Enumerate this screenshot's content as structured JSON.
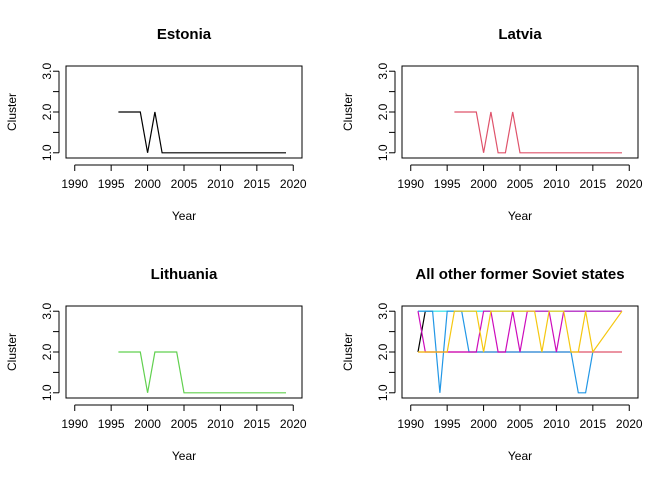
{
  "chart_data": [
    {
      "type": "line",
      "title": "Estonia",
      "xlabel": "Year",
      "ylabel": "Cluster",
      "xlim": [
        1990,
        2020
      ],
      "ylim": [
        1,
        3
      ],
      "xticks": [
        "1990",
        "1995",
        "2000",
        "2005",
        "2010",
        "2015",
        "2020"
      ],
      "yticks": [
        "1.0",
        "2.0",
        "3.0"
      ],
      "series": [
        {
          "color": "#000000",
          "x": [
            1996,
            1999,
            2000,
            2001,
            2002,
            2019
          ],
          "y": [
            2,
            2,
            1,
            2,
            1,
            1
          ]
        }
      ]
    },
    {
      "type": "line",
      "title": "Latvia",
      "xlabel": "Year",
      "ylabel": "Cluster",
      "xlim": [
        1990,
        2020
      ],
      "ylim": [
        1,
        3
      ],
      "xticks": [
        "1990",
        "1995",
        "2000",
        "2005",
        "2010",
        "2015",
        "2020"
      ],
      "yticks": [
        "1.0",
        "2.0",
        "3.0"
      ],
      "series": [
        {
          "color": "#DF536B",
          "x": [
            1996,
            1999,
            2000,
            2001,
            2002,
            2003,
            2004,
            2005,
            2019
          ],
          "y": [
            2,
            2,
            1,
            2,
            1,
            1,
            2,
            1,
            1
          ]
        }
      ]
    },
    {
      "type": "line",
      "title": "Lithuania",
      "xlabel": "Year",
      "ylabel": "Cluster",
      "xlim": [
        1990,
        2020
      ],
      "ylim": [
        1,
        3
      ],
      "xticks": [
        "1990",
        "1995",
        "2000",
        "2005",
        "2010",
        "2015",
        "2020"
      ],
      "yticks": [
        "1.0",
        "2.0",
        "3.0"
      ],
      "series": [
        {
          "color": "#61D04F",
          "x": [
            1996,
            1999,
            2000,
            2001,
            2004,
            2005,
            2019
          ],
          "y": [
            2,
            2,
            1,
            2,
            2,
            1,
            1
          ]
        }
      ]
    },
    {
      "type": "line",
      "title": "All other former Soviet states",
      "xlabel": "Year",
      "ylabel": "Cluster",
      "xlim": [
        1990,
        2020
      ],
      "ylim": [
        1,
        3
      ],
      "xticks": [
        "1990",
        "1995",
        "2000",
        "2005",
        "2010",
        "2015",
        "2020"
      ],
      "yticks": [
        "1.0",
        "2.0",
        "3.0"
      ],
      "series": [
        {
          "color": "#000000",
          "x": [
            1991,
            1992,
            1993
          ],
          "y": [
            2,
            3,
            3
          ]
        },
        {
          "color": "#DF536B",
          "x": [
            1991,
            2019
          ],
          "y": [
            2,
            2
          ]
        },
        {
          "color": "#28E2E5",
          "x": [
            1991,
            2019
          ],
          "y": [
            3,
            3
          ]
        },
        {
          "color": "#2297E6",
          "x": [
            1991,
            1993,
            1994,
            1995,
            1997,
            1998,
            2012,
            2013,
            2014,
            2015
          ],
          "y": [
            3,
            3,
            1,
            3,
            3,
            2,
            2,
            1,
            1,
            2
          ]
        },
        {
          "color": "#CD0BBC",
          "x": [
            1991,
            1992,
            1995,
            1996,
            1997,
            1998,
            1999,
            2000,
            2001,
            2002,
            2003,
            2004,
            2005,
            2006,
            2007,
            2008,
            2009,
            2010,
            2011,
            2019
          ],
          "y": [
            3,
            2,
            2,
            2,
            2,
            2,
            2,
            3,
            3,
            2,
            2,
            3,
            2,
            3,
            3,
            3,
            3,
            2,
            3,
            3
          ]
        },
        {
          "color": "#F5C710",
          "x": [
            1991,
            1992,
            1995,
            1996,
            1997,
            1998,
            1999,
            2000,
            2001,
            2002,
            2003,
            2004,
            2005,
            2006,
            2007,
            2008,
            2009,
            2010,
            2011,
            2012,
            2013,
            2014,
            2015,
            2019
          ],
          "y": [
            2,
            2,
            2,
            3,
            3,
            3,
            3,
            2,
            3,
            3,
            3,
            3,
            3,
            3,
            3,
            2,
            3,
            3,
            3,
            2,
            2,
            3,
            2,
            3
          ]
        }
      ]
    }
  ]
}
